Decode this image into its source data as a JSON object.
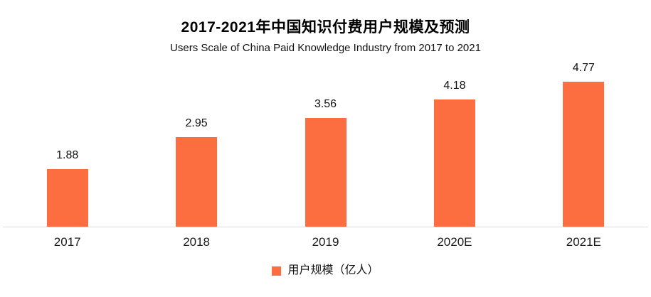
{
  "header": {
    "title": "2017-2021年中国知识付费用户规模及预测",
    "subtitle": "Users Scale of China Paid Knowledge Industry from 2017 to 2021"
  },
  "legend": {
    "label": "用户规模（亿人）"
  },
  "colors": {
    "bar": "#FC6D3F",
    "axis_line": "#DDDDDD",
    "text": "#111111"
  },
  "chart_data": {
    "type": "bar",
    "title": "2017-2021年中国知识付费用户规模及预测",
    "subtitle": "Users Scale of China Paid Knowledge Industry from 2017 to 2021",
    "categories": [
      "2017",
      "2018",
      "2019",
      "2020E",
      "2021E"
    ],
    "values": [
      1.88,
      2.95,
      3.56,
      4.18,
      4.77
    ],
    "series_name": "用户规模（亿人）",
    "xlabel": "",
    "ylabel": "",
    "ylim": [
      0,
      5.6
    ],
    "grid": false,
    "data_labels": true,
    "legend_position": "bottom",
    "bar_color": "#FC6D3F",
    "value_decimals": 2
  }
}
